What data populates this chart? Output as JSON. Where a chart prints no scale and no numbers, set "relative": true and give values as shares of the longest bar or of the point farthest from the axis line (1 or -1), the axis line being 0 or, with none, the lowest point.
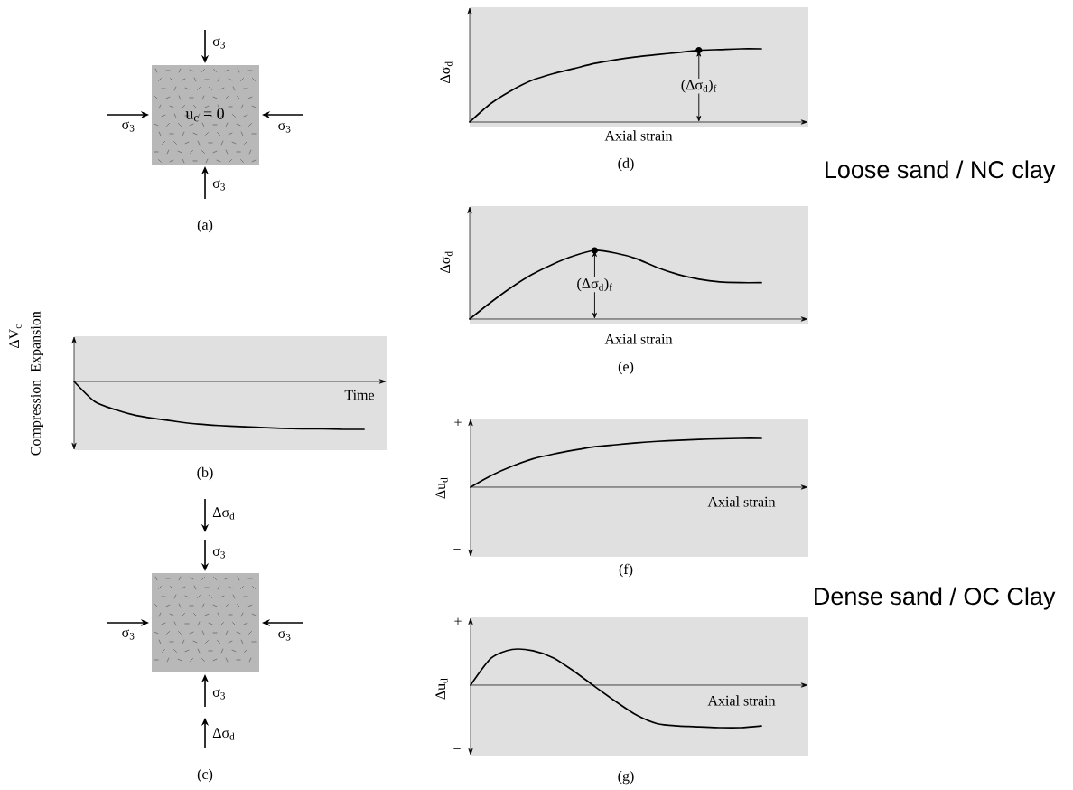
{
  "chart_data": [
    {
      "type": "other",
      "title": "(a)",
      "annotations": [
        "σ$_{3}$",
        "σ$_{3}$",
        "σ$_{3}$",
        "σ$_{3}$",
        "u$_{c}$ = 0"
      ]
    },
    {
      "type": "line",
      "relative": true,
      "title": "(b)",
      "xlabel": "Time",
      "ylabel": "ΔV$_{c}$",
      "color": "#000000",
      "annotations": [
        "Compression",
        "Expansion"
      ],
      "categories": [
        null,
        null,
        null,
        null,
        null,
        null,
        null,
        null,
        null,
        null,
        null,
        null,
        null,
        null,
        null
      ],
      "values": [
        0,
        -0.42,
        -0.59,
        -0.71,
        -0.78,
        -0.84,
        -0.89,
        -0.92,
        -0.94,
        -0.96,
        -0.98,
        -0.99,
        -0.99,
        -1,
        -1
      ]
    },
    {
      "type": "other",
      "title": "(c)",
      "annotations": [
        "Δσ$_{d}$",
        "σ$_{3}$",
        "σ$_{3}$",
        "σ$_{3}$",
        "σ$_{3}$",
        "Δσ$_{d}$"
      ]
    },
    {
      "type": "line",
      "relative": true,
      "title": "(d)",
      "xlabel": "Axial strain",
      "ylabel": "Δσ$_{d}$",
      "color": "#000000",
      "annotations": [
        {
          "text": "(Δσ$_{d}$)$_{f}$",
          "y": 0.98
        },
        "Loose sand / NC clay"
      ],
      "categories": [
        null,
        null,
        null,
        null,
        null,
        null,
        null,
        null,
        null,
        null,
        null,
        null,
        null,
        null,
        null
      ],
      "values": [
        0,
        0.25,
        0.43,
        0.57,
        0.66,
        0.73,
        0.8,
        0.85,
        0.89,
        0.92,
        0.95,
        0.98,
        0.99,
        1,
        1
      ]
    },
    {
      "type": "line",
      "relative": true,
      "title": "(e)",
      "xlabel": "Axial strain",
      "ylabel": "Δσ$_{d}$",
      "color": "#000000",
      "annotations": [
        {
          "text": "(Δσ$_{d}$)$_{f}$",
          "y": 1
        }
      ],
      "categories": [
        null,
        null,
        null,
        null,
        null,
        null,
        null,
        null,
        null,
        null,
        null,
        null,
        null,
        null,
        null
      ],
      "values": [
        0,
        0.24,
        0.46,
        0.65,
        0.8,
        0.92,
        1,
        0.96,
        0.88,
        0.75,
        0.65,
        0.58,
        0.54,
        0.53,
        0.53
      ]
    },
    {
      "type": "line",
      "relative": true,
      "title": "(f)",
      "xlabel": "Axial strain",
      "ylabel": "Δu$_{d}$",
      "color": "#000000",
      "annotations": [
        "+",
        "−",
        "Dense sand / OC Clay"
      ],
      "categories": [
        null,
        null,
        null,
        null,
        null,
        null,
        null,
        null,
        null,
        null,
        null,
        null,
        null,
        null,
        null
      ],
      "values": [
        0,
        0.24,
        0.43,
        0.58,
        0.68,
        0.76,
        0.83,
        0.87,
        0.91,
        0.94,
        0.96,
        0.98,
        0.99,
        1,
        1
      ]
    },
    {
      "type": "line",
      "relative": true,
      "title": "(g)",
      "xlabel": "Axial strain",
      "ylabel": "Δu$_{d}$",
      "color": "#000000",
      "annotations": [
        "+",
        "−"
      ],
      "categories": [
        null,
        null,
        null,
        null,
        null,
        null,
        null,
        null,
        null,
        null,
        null,
        null,
        null,
        null,
        null
      ],
      "values": [
        0,
        0.64,
        0.84,
        0.81,
        0.64,
        0.32,
        -0.04,
        -0.39,
        -0.71,
        -0.91,
        -0.96,
        -0.98,
        -1,
        -1,
        -0.96
      ]
    }
  ]
}
